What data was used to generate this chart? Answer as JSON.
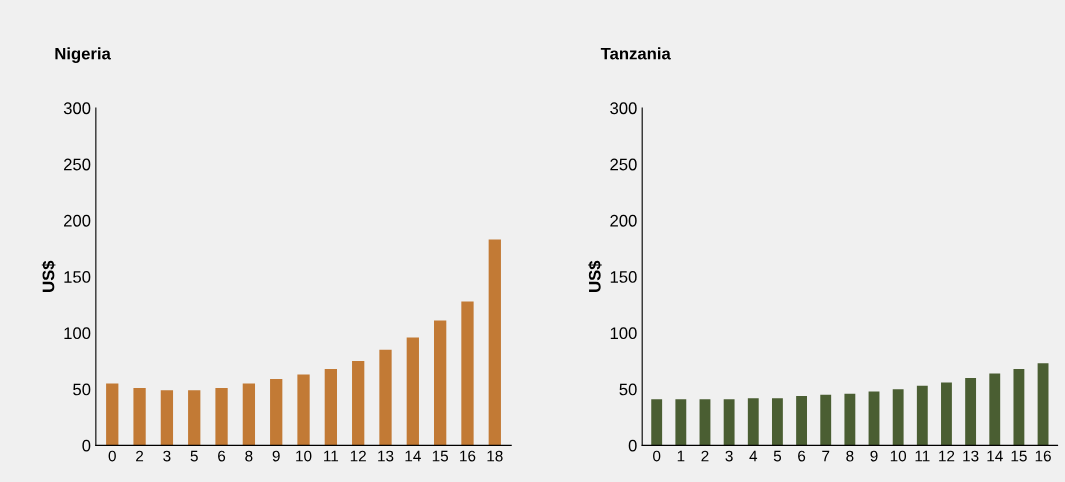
{
  "chart_data": [
    {
      "type": "bar",
      "title": "Nigeria",
      "ylabel": "US$",
      "categories": [
        "0",
        "2",
        "3",
        "5",
        "6",
        "8",
        "9",
        "10",
        "11",
        "12",
        "13",
        "14",
        "15",
        "16",
        "18"
      ],
      "values": [
        55,
        51,
        49,
        49,
        51,
        55,
        59,
        63,
        68,
        75,
        85,
        96,
        111,
        128,
        183
      ],
      "color": "#c27a35",
      "ylim": [
        0,
        300
      ],
      "yticks": [
        0,
        50,
        100,
        150,
        200,
        250,
        300
      ],
      "grid": false
    },
    {
      "type": "bar",
      "title": "Tanzania",
      "ylabel": "US$",
      "categories": [
        "0",
        "1",
        "2",
        "3",
        "4",
        "5",
        "6",
        "7",
        "8",
        "9",
        "10",
        "11",
        "12",
        "13",
        "14",
        "15",
        "16"
      ],
      "values": [
        41,
        41,
        41,
        41,
        42,
        42,
        44,
        45,
        46,
        48,
        50,
        53,
        56,
        60,
        64,
        68,
        73
      ],
      "color": "#4a5e32",
      "ylim": [
        0,
        300
      ],
      "yticks": [
        0,
        50,
        100,
        150,
        200,
        250,
        300
      ],
      "grid": false
    }
  ]
}
